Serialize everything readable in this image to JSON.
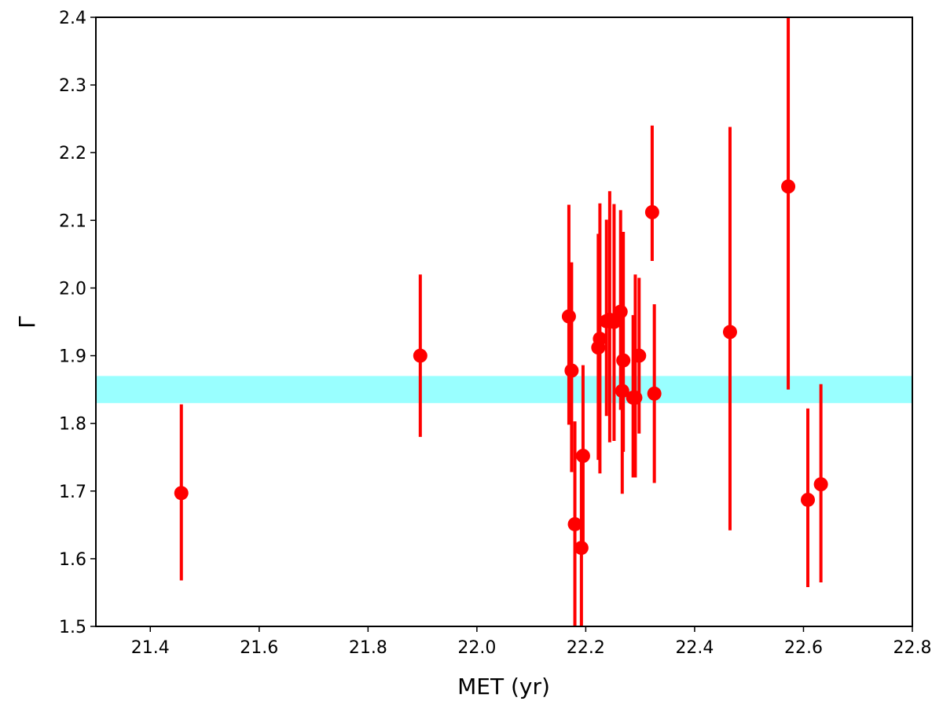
{
  "chart_data": {
    "type": "scatter",
    "title": "",
    "xlabel": "MET (yr)",
    "ylabel": "Γ",
    "xlim": [
      21.3,
      22.8
    ],
    "ylim": [
      1.5,
      2.4
    ],
    "x_ticks": [
      "21.4",
      "21.6",
      "21.8",
      "22.0",
      "22.2",
      "22.4",
      "22.6",
      "22.8"
    ],
    "y_ticks": [
      "1.5",
      "1.6",
      "1.7",
      "1.8",
      "1.9",
      "2.0",
      "2.1",
      "2.2",
      "2.3",
      "2.4"
    ],
    "grid": false,
    "band": {
      "y_low": 1.83,
      "y_high": 1.87,
      "color": "#99ffff"
    },
    "marker_color": "#ff0000",
    "series": [
      {
        "points": [
          {
            "x": 21.457,
            "y": 1.697,
            "err_low": 1.568,
            "err_high": 1.828
          },
          {
            "x": 21.896,
            "y": 1.9,
            "err_low": 1.78,
            "err_high": 2.02
          },
          {
            "x": 22.169,
            "y": 1.958,
            "err_low": 1.798,
            "err_high": 2.123
          },
          {
            "x": 22.174,
            "y": 1.878,
            "err_low": 1.728,
            "err_high": 2.038
          },
          {
            "x": 22.18,
            "y": 1.651,
            "err_low": 1.5,
            "err_high": 1.803
          },
          {
            "x": 22.192,
            "y": 1.616,
            "err_low": 1.5,
            "err_high": 1.75
          },
          {
            "x": 22.195,
            "y": 1.752,
            "err_low": 1.62,
            "err_high": 1.886
          },
          {
            "x": 22.223,
            "y": 1.912,
            "err_low": 1.746,
            "err_high": 2.08
          },
          {
            "x": 22.226,
            "y": 1.925,
            "err_low": 1.726,
            "err_high": 2.125
          },
          {
            "x": 22.238,
            "y": 1.951,
            "err_low": 1.811,
            "err_high": 2.101
          },
          {
            "x": 22.244,
            "y": 1.953,
            "err_low": 1.772,
            "err_high": 2.143
          },
          {
            "x": 22.252,
            "y": 1.95,
            "err_low": 1.774,
            "err_high": 2.124
          },
          {
            "x": 22.264,
            "y": 1.965,
            "err_low": 1.82,
            "err_high": 2.115
          },
          {
            "x": 22.267,
            "y": 1.848,
            "err_low": 1.696,
            "err_high": 2.006
          },
          {
            "x": 22.269,
            "y": 1.893,
            "err_low": 1.758,
            "err_high": 2.083
          },
          {
            "x": 22.287,
            "y": 1.838,
            "err_low": 1.72,
            "err_high": 1.96
          },
          {
            "x": 22.291,
            "y": 1.838,
            "err_low": 1.72,
            "err_high": 2.02
          },
          {
            "x": 22.298,
            "y": 1.9,
            "err_low": 1.785,
            "err_high": 2.015
          },
          {
            "x": 22.322,
            "y": 2.112,
            "err_low": 2.04,
            "err_high": 2.24
          },
          {
            "x": 22.326,
            "y": 1.844,
            "err_low": 1.712,
            "err_high": 1.976
          },
          {
            "x": 22.465,
            "y": 1.935,
            "err_low": 1.642,
            "err_high": 2.238
          },
          {
            "x": 22.572,
            "y": 2.15,
            "err_low": 1.85,
            "err_high": 2.4
          },
          {
            "x": 22.608,
            "y": 1.687,
            "err_low": 1.558,
            "err_high": 1.822
          },
          {
            "x": 22.632,
            "y": 1.71,
            "err_low": 1.565,
            "err_high": 1.858
          }
        ]
      }
    ]
  }
}
